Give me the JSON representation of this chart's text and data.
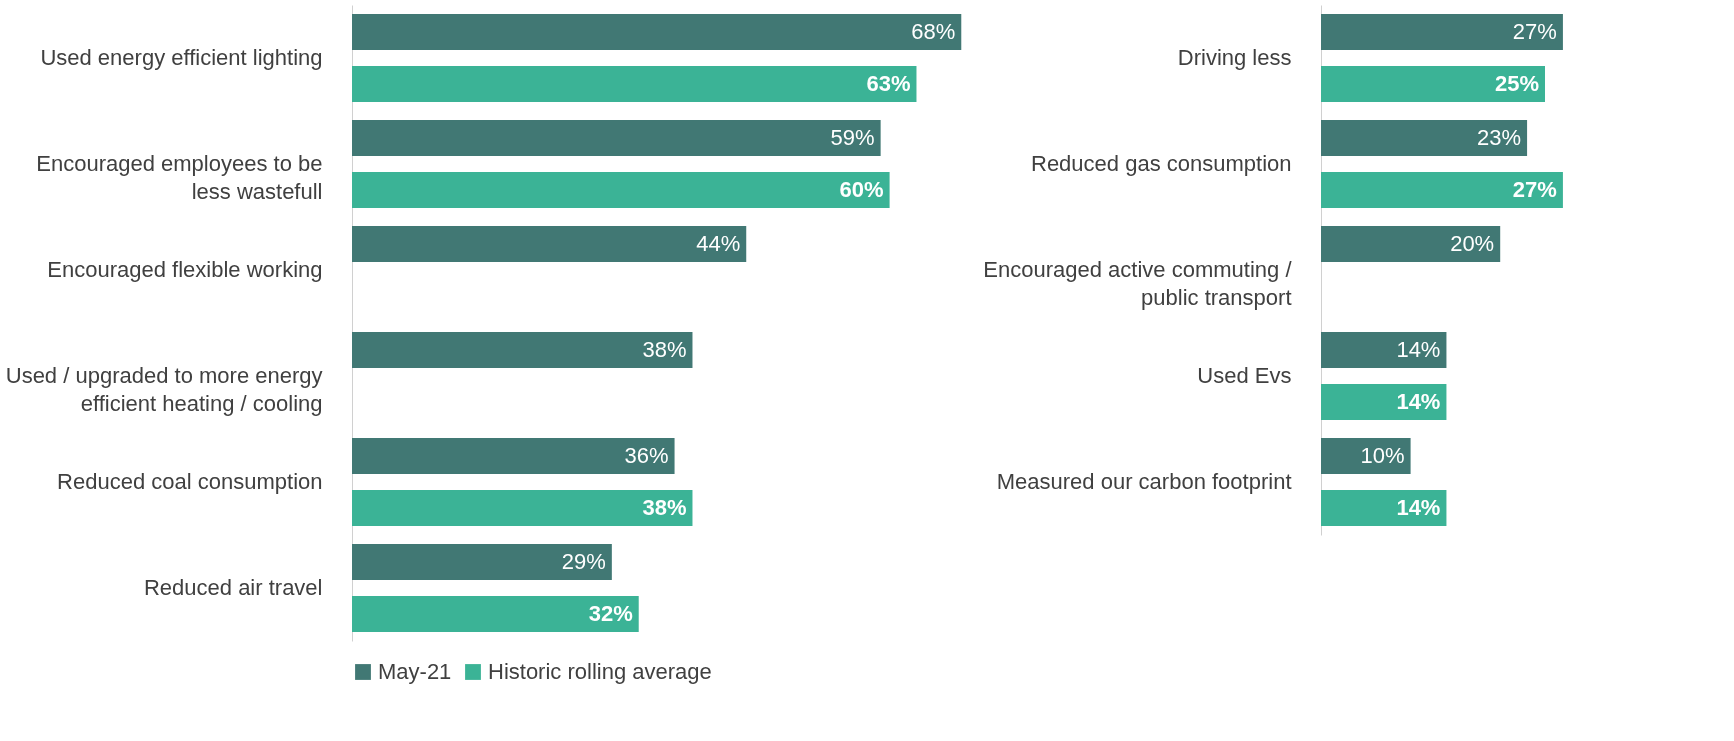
{
  "chart_data": [
    {
      "type": "bar",
      "orientation": "horizontal",
      "categories": [
        "Used energy efficient lighting",
        "Encouraged employees to be less wastefull",
        "Encouraged flexible working",
        "Used / upgraded to more energy efficient heating / cooling",
        "Reduced coal consumption",
        "Reduced air travel"
      ],
      "series": [
        {
          "name": "May-21",
          "color": "#417874",
          "values": [
            68,
            59,
            44,
            38,
            36,
            29
          ],
          "value_labels": [
            "68%",
            "59%",
            "44%",
            "38%",
            "36%",
            "29%"
          ]
        },
        {
          "name": "Historic rolling average",
          "color": "#3bb396",
          "values": [
            63,
            60,
            null,
            null,
            38,
            32
          ],
          "value_labels": [
            "63%",
            "60%",
            null,
            null,
            "38%",
            "32%"
          ]
        }
      ],
      "legend": "bottom",
      "tick_labels": "y"
    },
    {
      "type": "bar",
      "orientation": "horizontal",
      "categories": [
        "Driving less",
        "Reduced gas consumption",
        "Encouraged active commuting / public transport",
        "Used Evs",
        "Measured our carbon footprint"
      ],
      "series": [
        {
          "color": "#417874",
          "values": [
            27,
            23,
            20,
            14,
            10
          ],
          "value_labels": [
            "27%",
            "23%",
            "20%",
            "14%",
            "10%"
          ]
        },
        {
          "color": "#3bb396",
          "values": [
            25,
            27,
            null,
            14,
            14
          ],
          "value_labels": [
            "25%",
            "27%",
            null,
            "14%",
            "14%"
          ]
        }
      ],
      "tick_labels": "y"
    }
  ]
}
